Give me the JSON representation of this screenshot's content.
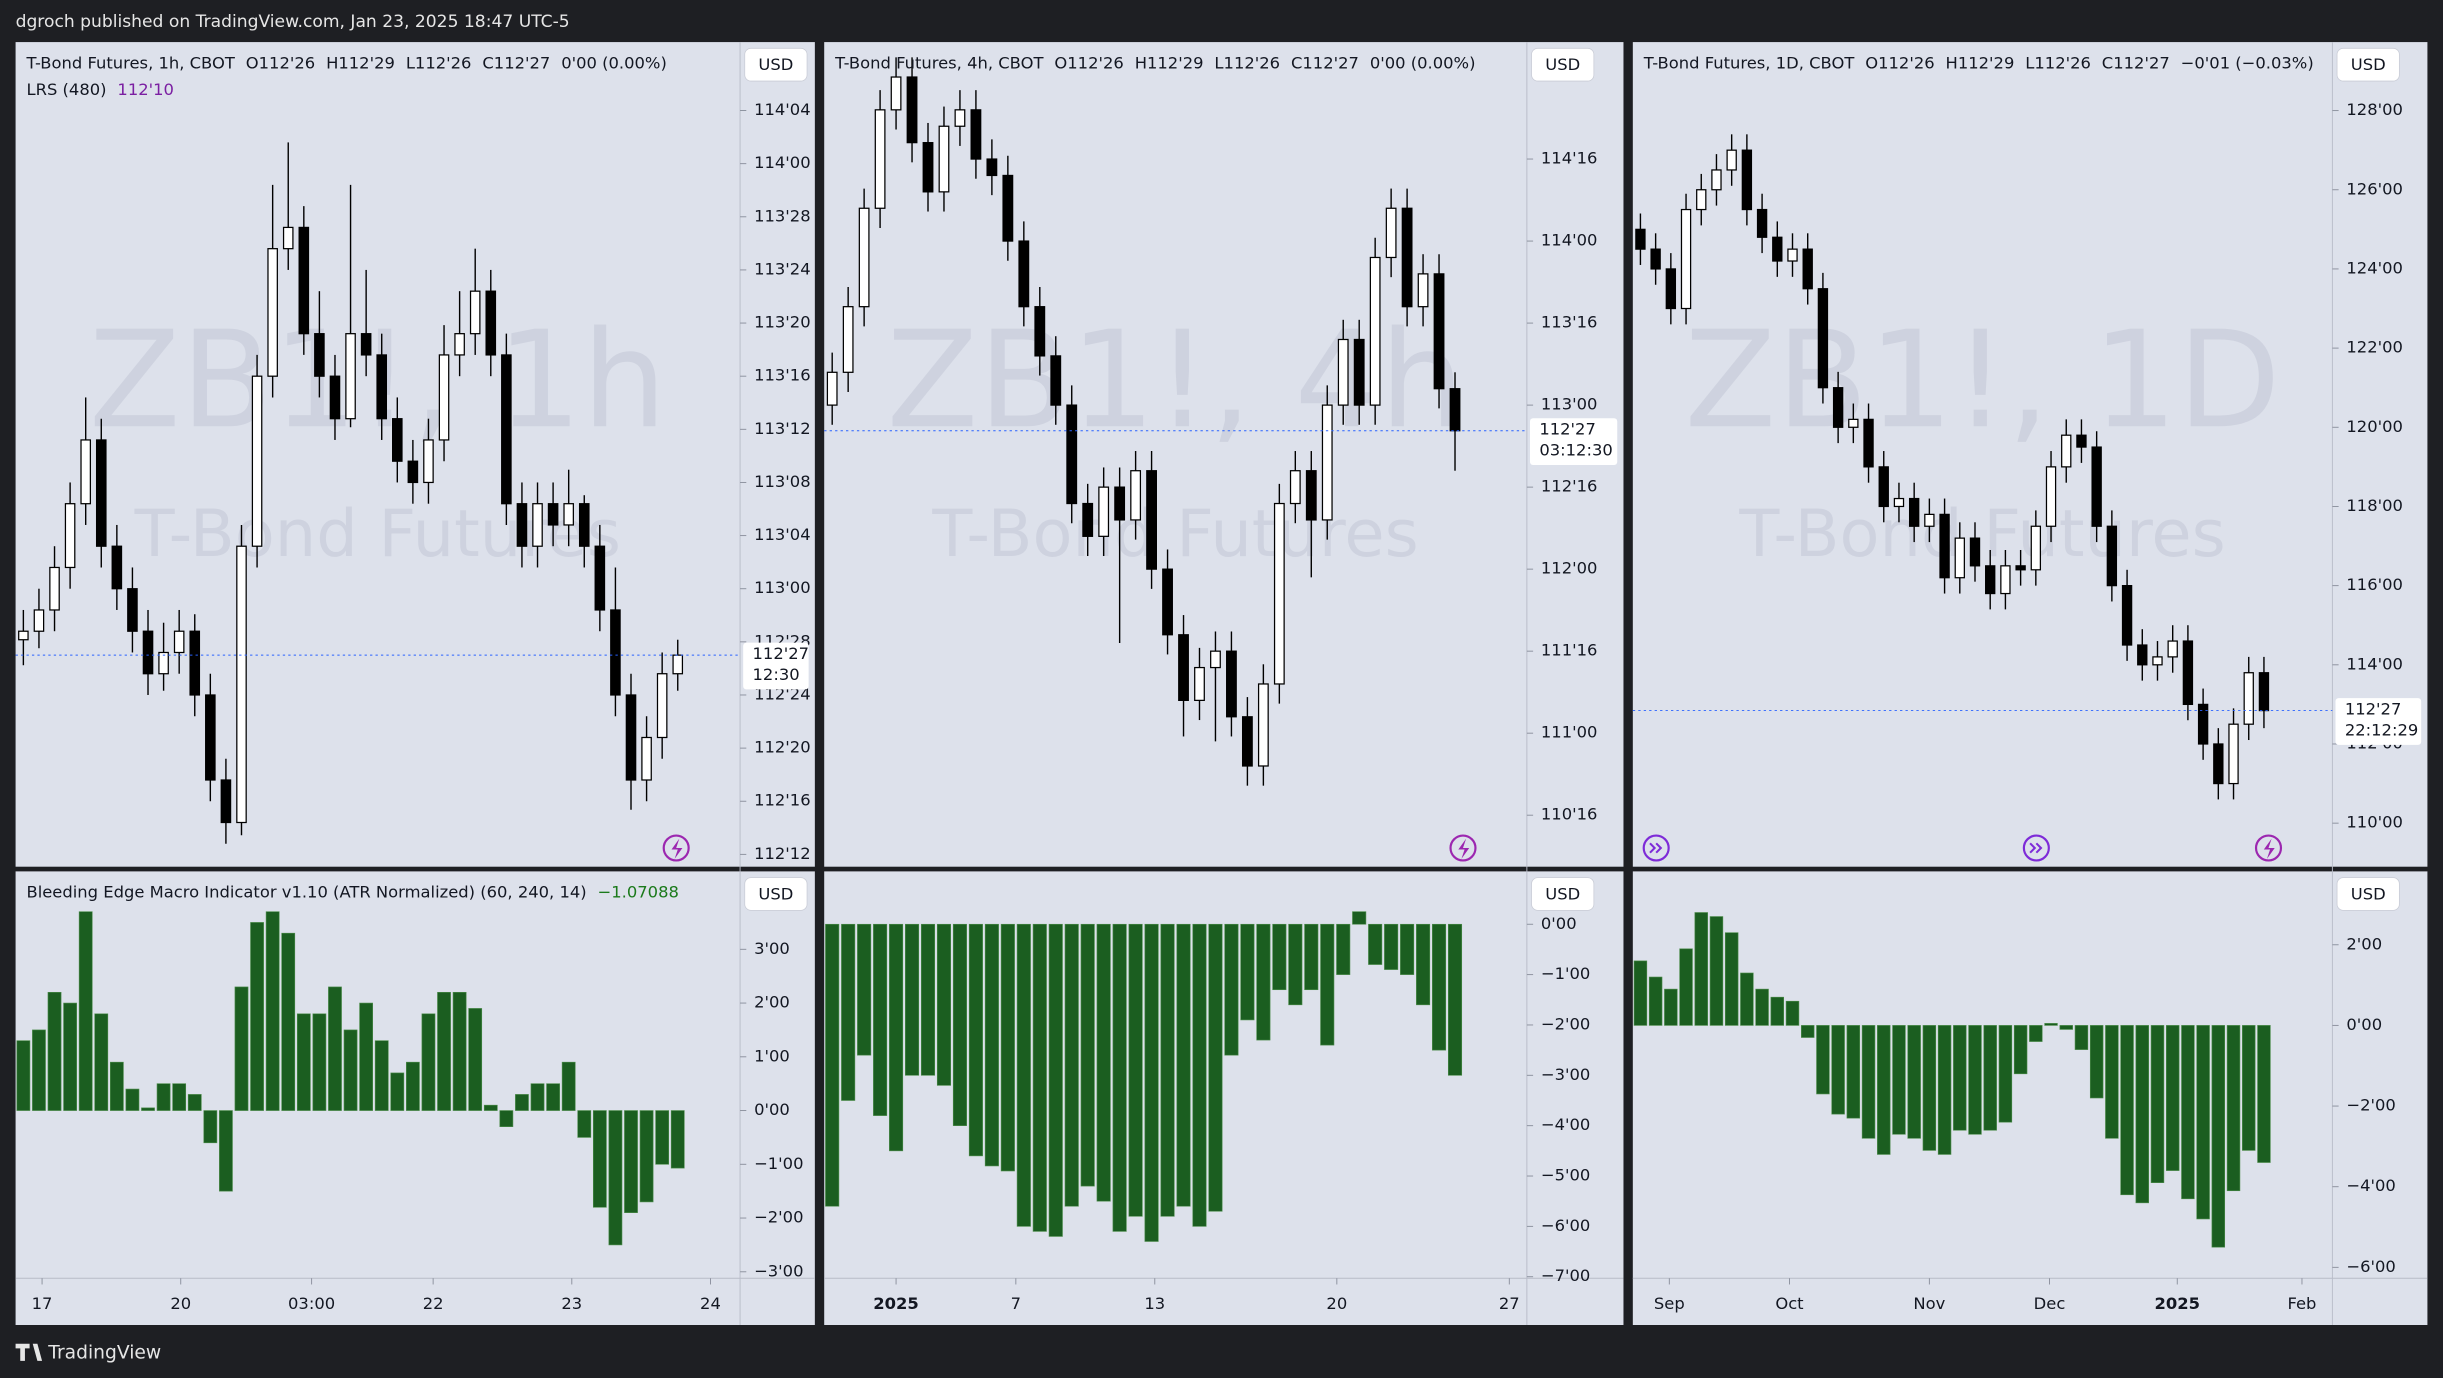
{
  "header": "dgroch published on TradingView.com, Jan 23, 2025 18:47 UTC-5",
  "footer": "TradingView",
  "chart_data": [
    {
      "type": "candlestick",
      "title": "T-Bond Futures, 1h, CBOT",
      "legend_values": [
        "O112'26",
        "H112'29",
        "L112'26",
        "C112'27",
        "0'00 (0.00%)"
      ],
      "study_name": "LRS (480)",
      "study_value": "112'10",
      "watermark": "ZB1!, 1h",
      "watermark_subtitle": "T-Bond Futures",
      "currency": "USD",
      "up_color": "#ffffff",
      "down_color": "#000000",
      "open": [
        112.88,
        112.9,
        112.95,
        113.05,
        113.2,
        113.35,
        113.1,
        113.0,
        112.9,
        112.8,
        112.85,
        112.9,
        112.75,
        112.55,
        112.45,
        113.1,
        113.5,
        113.8,
        113.85,
        113.6,
        113.5,
        113.4,
        113.6,
        113.55,
        113.4,
        113.3,
        113.25,
        113.35,
        113.55,
        113.6,
        113.7,
        113.55,
        113.2,
        113.1,
        113.2,
        113.15,
        113.2,
        113.1,
        112.95,
        112.75,
        112.55,
        112.65,
        112.8
      ],
      "high": [
        112.95,
        113.0,
        113.1,
        113.25,
        113.45,
        113.4,
        113.15,
        113.05,
        112.95,
        112.92,
        112.95,
        112.94,
        112.8,
        112.6,
        113.15,
        113.55,
        113.95,
        114.05,
        113.9,
        113.7,
        113.55,
        113.95,
        113.75,
        113.6,
        113.45,
        113.35,
        113.4,
        113.62,
        113.7,
        113.8,
        113.75,
        113.6,
        113.25,
        113.25,
        113.25,
        113.28,
        113.22,
        113.15,
        113.05,
        112.8,
        112.7,
        112.85,
        112.88
      ],
      "low": [
        112.82,
        112.86,
        112.9,
        113.0,
        113.15,
        113.05,
        112.95,
        112.85,
        112.75,
        112.76,
        112.8,
        112.7,
        112.5,
        112.4,
        112.42,
        113.05,
        113.45,
        113.75,
        113.55,
        113.45,
        113.35,
        113.38,
        113.5,
        113.35,
        113.25,
        113.2,
        113.2,
        113.3,
        113.5,
        113.55,
        113.5,
        113.15,
        113.05,
        113.05,
        113.1,
        113.1,
        113.05,
        112.9,
        112.7,
        112.48,
        112.5,
        112.6,
        112.76
      ],
      "close": [
        112.9,
        112.95,
        113.05,
        113.2,
        113.35,
        113.1,
        113.0,
        112.9,
        112.8,
        112.85,
        112.9,
        112.75,
        112.55,
        112.45,
        113.1,
        113.5,
        113.8,
        113.85,
        113.6,
        113.5,
        113.4,
        113.6,
        113.55,
        113.4,
        113.3,
        113.25,
        113.35,
        113.55,
        113.6,
        113.7,
        113.55,
        113.2,
        113.1,
        113.2,
        113.15,
        113.2,
        113.1,
        112.95,
        112.75,
        112.55,
        112.65,
        112.8,
        112.84375
      ],
      "xlim": [
        -0.5,
        46
      ],
      "ylim": [
        112.346,
        114.286
      ],
      "yticks": [
        {
          "value": 112.375,
          "label": "112'12"
        },
        {
          "value": 112.5,
          "label": "112'16"
        },
        {
          "value": 112.625,
          "label": "112'20"
        },
        {
          "value": 112.75,
          "label": "112'24"
        },
        {
          "value": 112.875,
          "label": "112'28"
        },
        {
          "value": 113,
          "label": "113'00"
        },
        {
          "value": 113.125,
          "label": "113'04"
        },
        {
          "value": 113.25,
          "label": "113'08"
        },
        {
          "value": 113.375,
          "label": "113'12"
        },
        {
          "value": 113.5,
          "label": "113'16"
        },
        {
          "value": 113.625,
          "label": "113'20"
        },
        {
          "value": 113.75,
          "label": "113'24"
        },
        {
          "value": 113.875,
          "label": "113'28"
        },
        {
          "value": 114,
          "label": "114'00"
        },
        {
          "value": 114.125,
          "label": "114'04"
        }
      ],
      "last_price": {
        "value": 112.84375,
        "label": "112'27"
      },
      "countdown": "12:30"
    },
    {
      "type": "bar",
      "title": "Bleeding Edge Macro Indicator v1.10 (ATR Normalized) (60, 240, 14)",
      "last_value": "−1.07088",
      "currency": "USD",
      "color": "#1b5e20",
      "values": [
        1.3,
        1.5,
        2.2,
        2.0,
        3.7,
        1.8,
        0.9,
        0.4,
        0.05,
        0.5,
        0.5,
        0.3,
        -0.6,
        -1.5,
        2.3,
        3.5,
        3.7,
        3.3,
        1.8,
        1.8,
        2.3,
        1.5,
        2.0,
        1.3,
        0.7,
        0.9,
        1.8,
        2.2,
        2.2,
        1.9,
        0.1,
        -0.3,
        0.3,
        0.5,
        0.5,
        0.9,
        -0.5,
        -1.8,
        -2.5,
        -1.9,
        -1.7,
        -1.0,
        -1.07088
      ],
      "xlim": [
        -0.5,
        46
      ],
      "xticks": [
        {
          "value": 1.2,
          "label": "17"
        },
        {
          "value": 10.1,
          "label": "20"
        },
        {
          "value": 18.5,
          "label": "03:00"
        },
        {
          "value": 26.3,
          "label": "22"
        },
        {
          "value": 35.2,
          "label": "23"
        },
        {
          "value": 44.1,
          "label": "24"
        }
      ],
      "ylim": [
        -3.12,
        4.45
      ],
      "yticks": [
        {
          "value": 3,
          "label": "3'00"
        },
        {
          "value": 2,
          "label": "2'00"
        },
        {
          "value": 1,
          "label": "1'00"
        },
        {
          "value": 0,
          "label": "0'00"
        },
        {
          "value": -1,
          "label": "−1'00"
        },
        {
          "value": -2,
          "label": "−2'00"
        },
        {
          "value": -3,
          "label": "−3'00"
        }
      ]
    },
    {
      "type": "candlestick",
      "title": "T-Bond Futures, 4h, CBOT",
      "legend_values": [
        "O112'26",
        "H112'29",
        "L112'26",
        "C112'27",
        "0'00 (0.00%)"
      ],
      "watermark": "ZB1!, 4h",
      "watermark_subtitle": "T-Bond Futures",
      "currency": "USD",
      "up_color": "#ffffff",
      "down_color": "#000000",
      "open": [
        113.0,
        113.2,
        113.6,
        114.2,
        114.8,
        115.0,
        114.6,
        114.3,
        114.7,
        114.8,
        114.5,
        114.4,
        114.0,
        113.6,
        113.3,
        113.0,
        112.4,
        112.2,
        112.5,
        112.3,
        112.6,
        112.0,
        111.6,
        111.2,
        111.4,
        111.5,
        111.1,
        110.8,
        111.3,
        112.4,
        112.6,
        112.3,
        113.0,
        113.4,
        113.0,
        113.9,
        114.2,
        113.6,
        113.8,
        113.1
      ],
      "high": [
        113.32,
        113.72,
        114.32,
        114.92,
        115.12,
        115.12,
        114.72,
        114.82,
        114.92,
        114.92,
        114.62,
        114.52,
        114.12,
        113.72,
        113.42,
        113.12,
        112.52,
        112.62,
        112.62,
        112.72,
        112.72,
        112.12,
        111.72,
        111.52,
        111.62,
        111.62,
        111.22,
        111.42,
        112.52,
        112.72,
        112.72,
        113.12,
        113.52,
        113.52,
        114.02,
        114.32,
        114.32,
        113.92,
        113.92,
        113.2
      ],
      "low": [
        112.88,
        113.08,
        113.48,
        114.08,
        114.68,
        114.48,
        114.18,
        114.18,
        114.58,
        114.38,
        114.28,
        113.88,
        113.48,
        113.18,
        112.88,
        112.28,
        112.08,
        112.08,
        111.55,
        112.18,
        111.88,
        111.48,
        110.98,
        111.08,
        110.95,
        110.98,
        110.68,
        110.68,
        111.18,
        112.28,
        111.95,
        112.18,
        112.88,
        112.88,
        112.88,
        113.78,
        113.48,
        113.48,
        112.98,
        112.6
      ],
      "close": [
        113.2,
        113.6,
        114.2,
        114.8,
        115.0,
        114.6,
        114.3,
        114.7,
        114.8,
        114.5,
        114.4,
        114.0,
        113.6,
        113.3,
        113.0,
        112.4,
        112.2,
        112.5,
        112.3,
        112.6,
        112.0,
        111.6,
        111.2,
        111.4,
        111.5,
        111.1,
        110.8,
        111.3,
        112.4,
        112.6,
        112.3,
        113.0,
        113.4,
        113.0,
        113.9,
        114.2,
        113.6,
        113.8,
        113.1,
        112.84375
      ],
      "xlim": [
        -0.5,
        43.5
      ],
      "ylim": [
        110.186,
        115.213
      ],
      "yticks": [
        {
          "value": 110.5,
          "label": "110'16"
        },
        {
          "value": 111,
          "label": "111'00"
        },
        {
          "value": 111.5,
          "label": "111'16"
        },
        {
          "value": 112,
          "label": "112'00"
        },
        {
          "value": 112.5,
          "label": "112'16"
        },
        {
          "value": 113,
          "label": "113'00"
        },
        {
          "value": 113.5,
          "label": "113'16"
        },
        {
          "value": 114,
          "label": "114'00"
        },
        {
          "value": 114.5,
          "label": "114'16"
        }
      ],
      "last_price": {
        "value": 112.84375,
        "label": "112'27"
      },
      "countdown": "03:12:30"
    },
    {
      "type": "bar",
      "currency": "USD",
      "color": "#1b5e20",
      "values": [
        -5.6,
        -3.5,
        -2.6,
        -3.8,
        -4.5,
        -3.0,
        -3.0,
        -3.2,
        -4.0,
        -4.6,
        -4.8,
        -4.9,
        -6.0,
        -6.1,
        -6.2,
        -5.6,
        -5.2,
        -5.5,
        -6.1,
        -5.8,
        -6.3,
        -5.8,
        -5.6,
        -6.0,
        -5.7,
        -2.6,
        -1.9,
        -2.3,
        -1.3,
        -1.6,
        -1.3,
        -2.4,
        -1.0,
        0.25,
        -0.8,
        -0.9,
        -1.0,
        -1.6,
        -2.5,
        -3.0
      ],
      "xlim": [
        -0.5,
        43.5
      ],
      "xticks": [
        {
          "value": 4.0,
          "label": "2025"
        },
        {
          "value": 11.5,
          "label": "7"
        },
        {
          "value": 20.2,
          "label": "13"
        },
        {
          "value": 31.6,
          "label": "20"
        },
        {
          "value": 42.4,
          "label": "27"
        }
      ],
      "ylim": [
        -7.03,
        1.05
      ],
      "yticks": [
        {
          "value": 0,
          "label": "0'00"
        },
        {
          "value": -1,
          "label": "−1'00"
        },
        {
          "value": -2,
          "label": "−2'00"
        },
        {
          "value": -3,
          "label": "−3'00"
        },
        {
          "value": -4,
          "label": "−4'00"
        },
        {
          "value": -5,
          "label": "−5'00"
        },
        {
          "value": -6,
          "label": "−6'00"
        },
        {
          "value": -7,
          "label": "−7'00"
        }
      ]
    },
    {
      "type": "candlestick",
      "title": "T-Bond Futures, 1D, CBOT",
      "legend_values": [
        "O112'26",
        "H112'29",
        "L112'26",
        "C112'27",
        "−0'01 (−0.03%)"
      ],
      "watermark": "ZB1!, 1D",
      "watermark_subtitle": "T-Bond Futures",
      "currency": "USD",
      "up_color": "#ffffff",
      "down_color": "#000000",
      "open": [
        125.0,
        124.5,
        124.0,
        123.0,
        125.5,
        126.0,
        126.5,
        127.0,
        125.5,
        124.8,
        124.2,
        124.5,
        123.5,
        121.0,
        120.0,
        120.2,
        119.0,
        118.0,
        118.2,
        117.5,
        117.8,
        116.2,
        117.2,
        116.5,
        115.8,
        116.5,
        116.4,
        117.5,
        119.0,
        119.8,
        119.5,
        117.5,
        116.0,
        114.5,
        114.0,
        114.2,
        114.6,
        113.0,
        112.0,
        111.0,
        112.5,
        113.8
      ],
      "high": [
        125.4,
        124.9,
        124.4,
        125.9,
        126.4,
        126.9,
        127.4,
        127.4,
        125.9,
        125.2,
        124.9,
        124.9,
        123.9,
        121.4,
        120.6,
        120.6,
        119.4,
        118.6,
        118.6,
        118.2,
        118.2,
        117.6,
        117.6,
        116.9,
        116.9,
        116.9,
        117.9,
        119.4,
        120.2,
        120.2,
        119.9,
        117.9,
        116.4,
        114.9,
        114.6,
        115.0,
        115.0,
        113.4,
        112.4,
        112.9,
        114.2,
        114.2
      ],
      "low": [
        124.1,
        123.6,
        122.6,
        122.6,
        125.1,
        125.6,
        126.1,
        125.1,
        124.4,
        123.8,
        123.8,
        123.1,
        120.6,
        119.6,
        119.6,
        118.6,
        117.6,
        117.6,
        117.1,
        117.1,
        115.8,
        115.8,
        116.1,
        115.4,
        115.4,
        116.0,
        116.0,
        117.1,
        118.6,
        119.1,
        117.1,
        115.6,
        114.1,
        113.6,
        113.6,
        113.8,
        112.6,
        111.6,
        110.6,
        110.6,
        112.1,
        112.4
      ],
      "close": [
        124.5,
        124.0,
        123.0,
        125.5,
        126.0,
        126.5,
        127.0,
        125.5,
        124.8,
        124.2,
        124.5,
        123.5,
        121.0,
        120.0,
        120.2,
        119.0,
        118.0,
        118.2,
        117.5,
        117.8,
        116.2,
        117.2,
        116.5,
        115.8,
        116.5,
        116.4,
        117.5,
        119.0,
        119.8,
        119.5,
        117.5,
        116.0,
        114.5,
        114.0,
        114.2,
        114.6,
        113.0,
        112.0,
        111.0,
        112.5,
        113.8,
        112.84375
      ],
      "xlim": [
        -0.5,
        45.5
      ],
      "ylim": [
        108.9,
        129.73
      ],
      "yticks": [
        {
          "value": 110,
          "label": "110'00"
        },
        {
          "value": 112,
          "label": "112'00"
        },
        {
          "value": 114,
          "label": "114'00"
        },
        {
          "value": 116,
          "label": "116'00"
        },
        {
          "value": 118,
          "label": "118'00"
        },
        {
          "value": 120,
          "label": "120'00"
        },
        {
          "value": 122,
          "label": "122'00"
        },
        {
          "value": 124,
          "label": "124'00"
        },
        {
          "value": 126,
          "label": "126'00"
        },
        {
          "value": 128,
          "label": "128'00"
        }
      ],
      "last_price": {
        "value": 112.84375,
        "label": "112'27"
      },
      "countdown": "22:12:29"
    },
    {
      "type": "bar",
      "currency": "USD",
      "color": "#1b5e20",
      "values": [
        1.6,
        1.2,
        0.9,
        1.9,
        2.8,
        2.7,
        2.3,
        1.3,
        0.9,
        0.7,
        0.6,
        -0.3,
        -1.7,
        -2.2,
        -2.3,
        -2.8,
        -3.2,
        -2.7,
        -2.8,
        -3.1,
        -3.2,
        -2.6,
        -2.7,
        -2.6,
        -2.4,
        -1.2,
        -0.4,
        0.05,
        -0.1,
        -0.6,
        -1.8,
        -2.8,
        -4.2,
        -4.4,
        -3.9,
        -3.6,
        -4.3,
        -4.8,
        -5.5,
        -4.1,
        -3.1,
        -3.4
      ],
      "xlim": [
        -0.5,
        45.5
      ],
      "xticks": [
        {
          "value": 1.9,
          "label": "Sep"
        },
        {
          "value": 9.8,
          "label": "Oct"
        },
        {
          "value": 19.0,
          "label": "Nov"
        },
        {
          "value": 26.9,
          "label": "Dec"
        },
        {
          "value": 35.3,
          "label": "2025"
        },
        {
          "value": 43.5,
          "label": "Feb"
        }
      ],
      "ylim": [
        -6.27,
        3.82
      ],
      "yticks": [
        {
          "value": 2,
          "label": "2'00"
        },
        {
          "value": 0,
          "label": "0'00"
        },
        {
          "value": -2,
          "label": "−2'00"
        },
        {
          "value": -4,
          "label": "−4'00"
        },
        {
          "value": -6,
          "label": "−6'00"
        }
      ]
    }
  ]
}
